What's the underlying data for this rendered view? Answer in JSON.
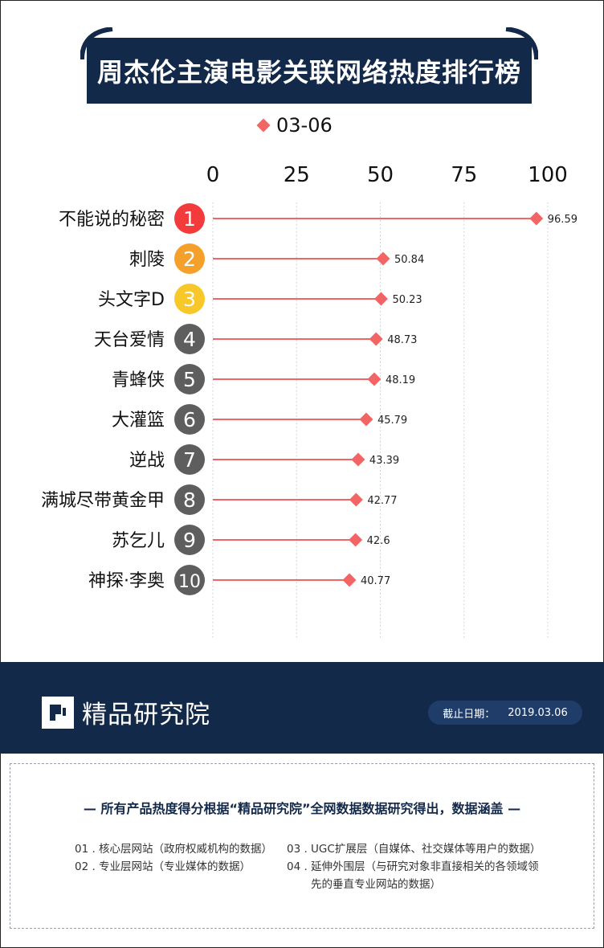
{
  "title": "周杰伦主演电影关联网络热度排行榜",
  "colors": {
    "navy": "#13294a",
    "accent": "#f36565",
    "rank1": "#f33b3b",
    "rank2": "#f5a02a",
    "rank3": "#f8c72a",
    "rank_other": "#5e5e5e"
  },
  "chart_data": {
    "type": "bar",
    "orientation": "horizontal",
    "style": "lollipop",
    "series": [
      {
        "name": "03-06",
        "values": [
          96.59,
          50.84,
          50.23,
          48.73,
          48.19,
          45.79,
          43.39,
          42.77,
          42.6,
          40.77
        ]
      }
    ],
    "categories": [
      "不能说的秘密",
      "刺陵",
      "头文字D",
      "天台爱情",
      "青蜂侠",
      "大灌篮",
      "逆战",
      "满城尽带黄金甲",
      "苏乞儿",
      "神探·李奥"
    ],
    "value_labels": [
      "96.59",
      "50.84",
      "50.23",
      "48.73",
      "48.19",
      "45.79",
      "43.39",
      "42.77",
      "42.6",
      "40.77"
    ],
    "ranks": [
      "1",
      "2",
      "3",
      "4",
      "5",
      "6",
      "7",
      "8",
      "9",
      "10"
    ],
    "x_ticks": [
      "0",
      "25",
      "50",
      "75",
      "100"
    ],
    "xlim": [
      0,
      100
    ],
    "axis_position": "top",
    "gridlines": "vertical dotted",
    "legend_position": "top-center"
  },
  "footer": {
    "logo_text": "精品研究院",
    "date_label": "截止日期：",
    "date_value": "2019.03.06"
  },
  "notes": {
    "heading": "— 所有产品热度得分根据“精品研究院”全网数据数据研究得出，数据涵盖 —",
    "item1": "01 . 核心层网站（政府权威机构的数据）",
    "item2": "02 . 专业层网站（专业媒体的数据）",
    "item3": "03 . UGC扩展层（自媒体、社交媒体等用户的数据）",
    "item4_line1": "04 . 延伸外围层（与研究对象非直接相关的各领域领",
    "item4_line2": "先的垂直专业网站的数据）"
  }
}
